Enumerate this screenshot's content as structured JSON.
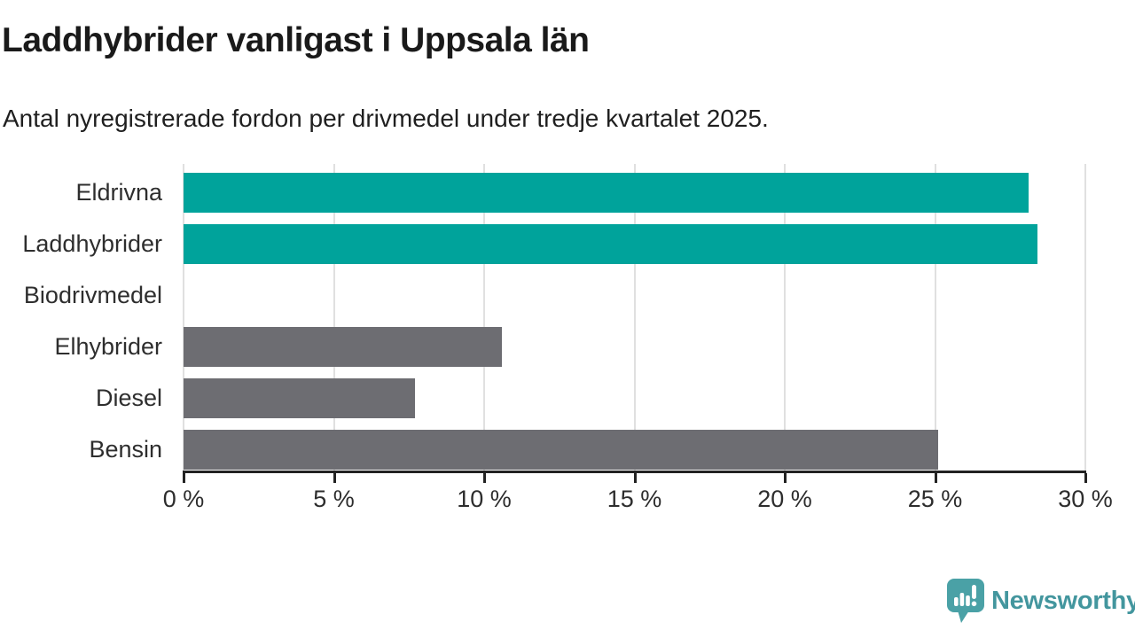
{
  "title": "Laddhybrider vanligast i Uppsala län",
  "subtitle": "Antal nyregistrerade fordon per drivmedel under tredje kvartalet 2025.",
  "chart_data": {
    "type": "bar",
    "orientation": "horizontal",
    "title": "Laddhybrider vanligast i Uppsala län",
    "subtitle": "Antal nyregistrerade fordon per drivmedel under tredje kvartalet 2025.",
    "categories": [
      "Eldrivna",
      "Laddhybrider",
      "Biodrivmedel",
      "Elhybrider",
      "Diesel",
      "Bensin"
    ],
    "values": [
      28.1,
      28.4,
      0,
      10.6,
      7.7,
      25.1
    ],
    "unit": "%",
    "xlim": [
      0,
      30
    ],
    "x_tick_values": [
      0,
      5,
      10,
      15,
      20,
      25,
      30
    ],
    "x_tick_labels": [
      "0 %",
      "5 %",
      "10 %",
      "15 %",
      "20 %",
      "25 %",
      "30 %"
    ],
    "grid": true,
    "legend": false,
    "bar_colors": [
      "#00a39b",
      "#00a39b",
      "#6d6d72",
      "#6d6d72",
      "#6d6d72",
      "#6d6d72"
    ]
  },
  "colors": {
    "highlight": "#00a39b",
    "muted": "#6d6d72",
    "grid": "#e0e0e0",
    "axis": "#222222",
    "text": "#2d2d2d",
    "brand": "#43969e",
    "brand_icon": "#4aa1a6"
  },
  "branding": {
    "name": "Newsworthy",
    "icon": "newsworthy-speech-bubble-chart-icon"
  }
}
